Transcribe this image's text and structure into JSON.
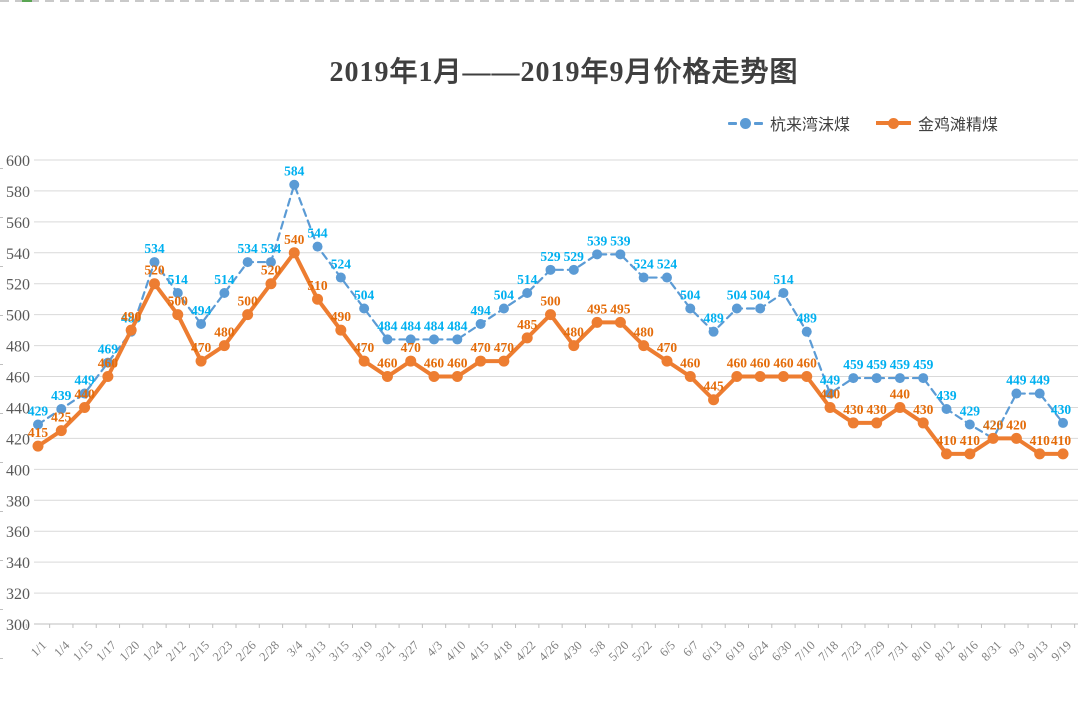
{
  "chart_data": {
    "type": "line",
    "title": "2019年1月——2019年9月价格走势图",
    "categories": [
      "1/1",
      "1/4",
      "1/15",
      "1/17",
      "1/20",
      "1/24",
      "2/12",
      "2/15",
      "2/23",
      "2/26",
      "2/28",
      "3/4",
      "3/13",
      "3/15",
      "3/19",
      "3/21",
      "3/27",
      "4/3",
      "4/10",
      "4/15",
      "4/18",
      "4/22",
      "4/26",
      "4/30",
      "5/8",
      "5/20",
      "5/22",
      "6/5",
      "6/7",
      "6/13",
      "6/19",
      "6/24",
      "6/30",
      "7/10",
      "7/18",
      "7/23",
      "7/29",
      "7/31",
      "8/10",
      "8/12",
      "8/16",
      "8/31",
      "9/3",
      "9/13",
      "9/19"
    ],
    "series": [
      {
        "name": "杭来湾沫煤",
        "color": "#5B9BD5",
        "label_color": "#00B0F0",
        "line_style": "dashed",
        "values": [
          429,
          439,
          449,
          469,
          489,
          534,
          514,
          494,
          514,
          534,
          534,
          584,
          544,
          524,
          504,
          484,
          484,
          484,
          484,
          494,
          504,
          514,
          529,
          529,
          539,
          539,
          524,
          524,
          504,
          489,
          504,
          504,
          514,
          489,
          449,
          459,
          459,
          459,
          459,
          439,
          429,
          420,
          449,
          449,
          430
        ]
      },
      {
        "name": "金鸡滩精煤",
        "color": "#ED7D31",
        "label_color": "#E46C0A",
        "line_style": "solid",
        "values": [
          415,
          425,
          440,
          460,
          490,
          520,
          500,
          470,
          480,
          500,
          520,
          540,
          510,
          490,
          470,
          460,
          470,
          460,
          460,
          470,
          470,
          485,
          500,
          480,
          495,
          495,
          480,
          470,
          460,
          445,
          460,
          460,
          460,
          460,
          440,
          430,
          430,
          440,
          430,
          410,
          410,
          420,
          420,
          410,
          410
        ]
      }
    ],
    "y_axis": {
      "min": 300,
      "max": 600,
      "step": 20,
      "tick_labels": [
        "600",
        "580",
        "560",
        "540",
        "520",
        "500",
        "480",
        "460",
        "440",
        "420",
        "400",
        "380",
        "360",
        "340",
        "320",
        "300"
      ],
      "label_color": "#595959"
    },
    "x_axis": {
      "label_color": "#7F7F7F",
      "rotation_deg": -45
    },
    "grid": true,
    "legend_position": "top-right",
    "gridline_color": "#D9D9D9",
    "axisline_color": "#BFBFBF"
  }
}
